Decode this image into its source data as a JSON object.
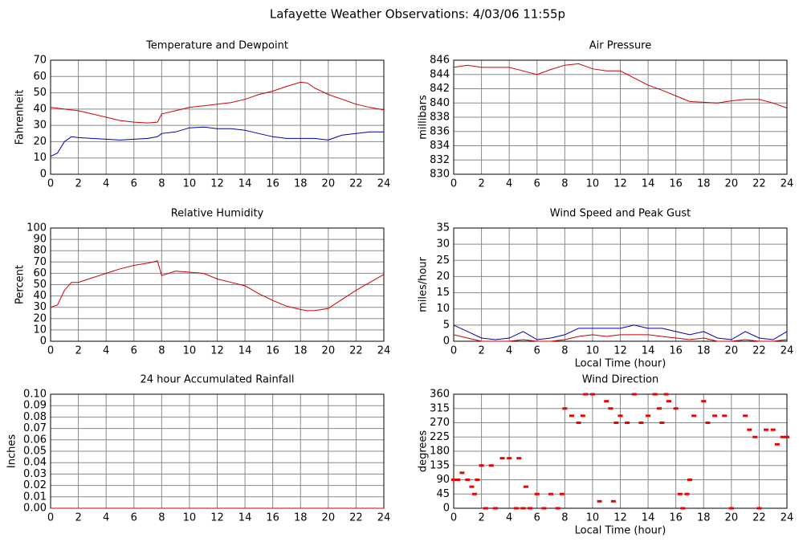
{
  "title": "Lafayette Weather Observations: 4/03/06 11:55p",
  "chart_data": [
    {
      "type": "line",
      "title": "Temperature and Dewpoint",
      "ylabel": "Fahrenheit",
      "x": [
        0,
        0.5,
        1,
        1.5,
        2,
        3,
        4,
        5,
        6,
        7,
        7.7,
        8,
        9,
        10,
        11,
        12,
        13,
        14,
        15,
        16,
        17,
        18,
        18.5,
        19,
        20,
        21,
        22,
        23,
        24
      ],
      "series": [
        {
          "color": "#cc0000",
          "values": [
            41,
            40.5,
            40,
            39.5,
            39,
            37,
            35,
            33,
            32,
            31.5,
            32,
            37,
            39,
            41,
            42,
            43,
            44,
            46,
            49,
            51,
            54,
            56.5,
            56,
            53,
            49,
            46,
            43,
            41,
            39.5
          ]
        },
        {
          "color": "#0000aa",
          "values": [
            11,
            13,
            20,
            23,
            22.5,
            22,
            21.5,
            21,
            21.5,
            22,
            23,
            25,
            26,
            28.5,
            29,
            28,
            28,
            27,
            25,
            23,
            22,
            22,
            22,
            22,
            21,
            24,
            25,
            26,
            26
          ]
        }
      ],
      "xlim": [
        0,
        24
      ],
      "ylim": [
        0,
        70
      ],
      "xticks": [
        0,
        2,
        4,
        6,
        8,
        10,
        12,
        14,
        16,
        18,
        20,
        22,
        24
      ],
      "yticks": [
        0,
        10,
        20,
        30,
        40,
        50,
        60,
        70
      ],
      "grid": true
    },
    {
      "type": "line",
      "title": "Air Pressure",
      "ylabel": "millibars",
      "x": [
        0,
        1,
        2,
        3,
        4,
        5,
        6,
        7,
        8,
        9,
        10,
        11,
        12,
        13,
        14,
        15,
        16,
        17,
        18,
        19,
        20,
        21,
        22,
        23,
        24
      ],
      "series": [
        {
          "color": "#cc0000",
          "values": [
            845,
            845.3,
            845,
            845,
            845,
            844.5,
            844,
            844.7,
            845.3,
            845.5,
            844.8,
            844.5,
            844.5,
            843.5,
            842.5,
            841.8,
            841,
            840.2,
            840.1,
            840,
            840.3,
            840.5,
            840.5,
            840,
            839.3
          ]
        }
      ],
      "xlim": [
        0,
        24
      ],
      "ylim": [
        830,
        846
      ],
      "xticks": [
        0,
        2,
        4,
        6,
        8,
        10,
        12,
        14,
        16,
        18,
        20,
        22,
        24
      ],
      "yticks": [
        830,
        832,
        834,
        836,
        838,
        840,
        842,
        844,
        846
      ],
      "grid": true
    },
    {
      "type": "line",
      "title": "Relative Humidity",
      "ylabel": "Percent",
      "x": [
        0,
        0.5,
        1,
        1.5,
        2,
        3,
        4,
        5,
        6,
        7,
        7.7,
        8,
        9,
        10,
        11,
        12,
        13,
        14,
        15,
        16,
        17,
        18,
        18.5,
        19,
        20,
        21,
        22,
        23,
        24
      ],
      "series": [
        {
          "color": "#cc0000",
          "values": [
            30,
            32,
            45,
            52,
            52,
            56,
            60,
            64,
            67,
            69,
            71,
            58,
            62,
            61,
            60,
            55,
            52,
            49,
            42,
            36,
            31,
            28,
            27,
            27,
            29,
            37,
            45,
            52,
            59
          ]
        }
      ],
      "xlim": [
        0,
        24
      ],
      "ylim": [
        0,
        100
      ],
      "xticks": [
        0,
        2,
        4,
        6,
        8,
        10,
        12,
        14,
        16,
        18,
        20,
        22,
        24
      ],
      "yticks": [
        0,
        10,
        20,
        30,
        40,
        50,
        60,
        70,
        80,
        90,
        100
      ],
      "grid": true
    },
    {
      "type": "line",
      "title": "Wind Speed and Peak Gust",
      "ylabel": "miles/hour",
      "xlabel": "Local Time (hour)",
      "x": [
        0,
        1,
        2,
        3,
        4,
        5,
        6,
        7,
        8,
        9,
        10,
        11,
        12,
        13,
        14,
        15,
        16,
        17,
        18,
        19,
        20,
        21,
        22,
        23,
        24
      ],
      "series": [
        {
          "color": "#0000aa",
          "values": [
            5,
            3,
            1,
            0.5,
            1,
            3,
            0.5,
            1,
            2,
            4,
            4,
            4,
            4,
            5,
            4,
            4,
            3,
            2,
            3,
            1,
            0.5,
            3,
            1,
            0.5,
            3
          ]
        },
        {
          "color": "#cc0000",
          "values": [
            2,
            1,
            0,
            0,
            0,
            0.5,
            0,
            0,
            0.5,
            1.5,
            2,
            1.5,
            2,
            2,
            2,
            1.5,
            1,
            0.5,
            1,
            0,
            0,
            0.5,
            0,
            0,
            0.5
          ]
        }
      ],
      "xlim": [
        0,
        24
      ],
      "ylim": [
        0,
        35
      ],
      "xticks": [
        0,
        2,
        4,
        6,
        8,
        10,
        12,
        14,
        16,
        18,
        20,
        22,
        24
      ],
      "yticks": [
        0,
        5,
        10,
        15,
        20,
        25,
        30,
        35
      ],
      "grid": true
    },
    {
      "type": "line",
      "title": "24 hour Accumulated Rainfall",
      "ylabel": "Inches",
      "x": [
        0,
        24
      ],
      "series": [
        {
          "color": "#cc0000",
          "values": [
            0,
            0
          ]
        }
      ],
      "xlim": [
        0,
        24
      ],
      "ylim": [
        0,
        0.1
      ],
      "xticks": [
        0,
        2,
        4,
        6,
        8,
        10,
        12,
        14,
        16,
        18,
        20,
        22,
        24
      ],
      "yticks": [
        {
          "value": 0,
          "label": "0.00"
        },
        {
          "value": 0.01,
          "label": "0.01"
        },
        {
          "value": 0.02,
          "label": "0.02"
        },
        {
          "value": 0.03,
          "label": "0.03"
        },
        {
          "value": 0.04,
          "label": "0.04"
        },
        {
          "value": 0.05,
          "label": "0.05"
        },
        {
          "value": 0.06,
          "label": "0.06"
        },
        {
          "value": 0.07,
          "label": "0.07"
        },
        {
          "value": 0.08,
          "label": "0.08"
        },
        {
          "value": 0.09,
          "label": "0.09"
        },
        {
          "value": 0.1,
          "label": "0.10"
        }
      ],
      "grid": true
    },
    {
      "type": "scatter",
      "title": "Wind Direction",
      "ylabel": "degrees",
      "xlabel": "Local Time (hour)",
      "x": [
        0,
        0.3,
        0.6,
        1,
        1.3,
        1.5,
        1.7,
        2,
        2.3,
        2.7,
        3,
        3.5,
        4,
        4.5,
        4.7,
        5,
        5.2,
        5.5,
        6,
        6.5,
        7,
        7.5,
        7.8,
        8,
        8.5,
        9,
        9.3,
        9.5,
        10,
        10.5,
        11,
        11.3,
        11.5,
        11.7,
        12,
        12.5,
        13,
        13.5,
        14,
        14.5,
        14.8,
        15,
        15.3,
        15.5,
        16,
        16.3,
        16.5,
        16.8,
        17,
        17.3,
        18,
        18.3,
        18.8,
        19.5,
        20,
        21,
        21.3,
        21.7,
        22,
        22.5,
        23,
        23.3,
        23.7,
        24
      ],
      "series": [
        {
          "color": "#ee0000",
          "values": [
            90,
            90,
            112,
            90,
            68,
            45,
            90,
            135,
            0,
            135,
            0,
            158,
            158,
            0,
            158,
            0,
            68,
            0,
            45,
            0,
            45,
            0,
            45,
            315,
            292,
            270,
            292,
            360,
            360,
            22,
            338,
            315,
            22,
            270,
            292,
            270,
            360,
            270,
            292,
            360,
            315,
            270,
            360,
            338,
            315,
            45,
            0,
            45,
            90,
            292,
            338,
            270,
            292,
            292,
            0,
            292,
            248,
            225,
            0,
            248,
            248,
            202,
            225,
            225
          ]
        }
      ],
      "xlim": [
        0,
        24
      ],
      "ylim": [
        0,
        360
      ],
      "xticks": [
        0,
        2,
        4,
        6,
        8,
        10,
        12,
        14,
        16,
        18,
        20,
        22,
        24
      ],
      "yticks": [
        0,
        45,
        90,
        135,
        180,
        225,
        270,
        315,
        360
      ],
      "grid": true
    }
  ]
}
